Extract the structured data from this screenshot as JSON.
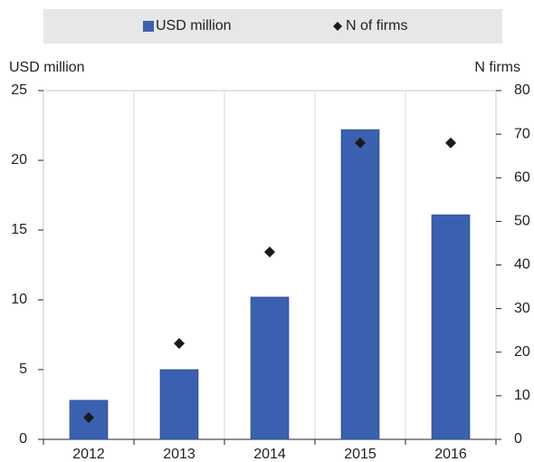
{
  "chart_data": {
    "type": "bar",
    "categories": [
      "2012",
      "2013",
      "2014",
      "2015",
      "2016"
    ],
    "y_label": "USD million",
    "y2_label": "N firms",
    "series": [
      {
        "name": "USD million",
        "type": "bar",
        "color": "#3a61b0",
        "values": [
          2.8,
          5.0,
          10.2,
          22.2,
          16.1
        ]
      },
      {
        "name": "N of firms",
        "type": "scatter",
        "axis": "y2",
        "color": "#1a1a1a",
        "values": [
          5,
          22,
          43,
          68,
          68
        ]
      }
    ],
    "ylim": [
      0,
      25
    ],
    "yticks": [
      0,
      5,
      10,
      15,
      20,
      25
    ],
    "y2lim": [
      0,
      80
    ],
    "y2ticks": [
      0,
      10,
      20,
      30,
      40,
      50,
      60,
      70,
      80
    ],
    "legend": "top"
  }
}
